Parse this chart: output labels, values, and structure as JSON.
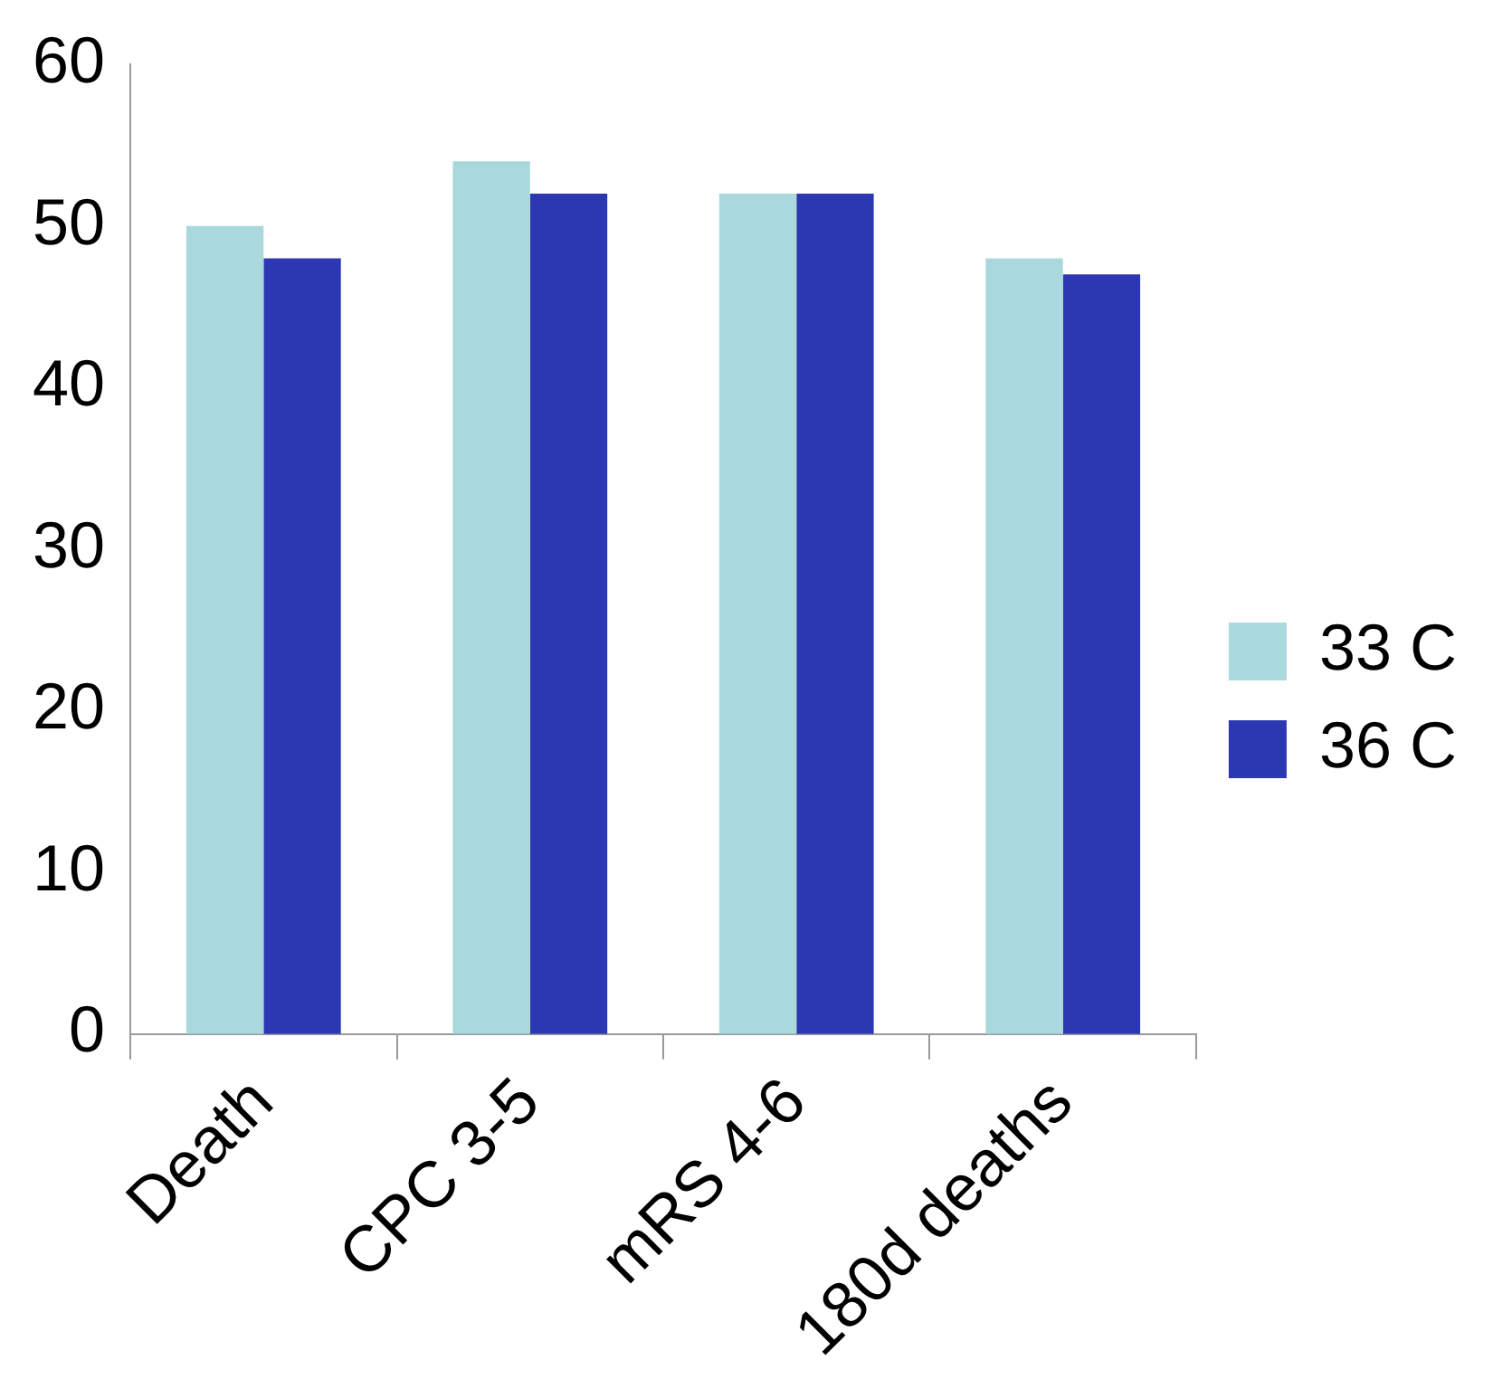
{
  "chart_data": {
    "type": "bar",
    "categories": [
      "Death",
      "CPC 3-5",
      "mRS 4-6",
      "180d deaths"
    ],
    "series": [
      {
        "name": "33 C",
        "color": "#a9d9dd",
        "values": [
          50,
          54,
          52,
          48
        ]
      },
      {
        "name": "36 C",
        "color": "#2c37b2",
        "values": [
          48,
          52,
          52,
          47
        ]
      }
    ],
    "ylim": [
      0,
      60
    ],
    "yticks": [
      0,
      10,
      20,
      30,
      40,
      50,
      60
    ],
    "grid": false,
    "legend": "right"
  }
}
